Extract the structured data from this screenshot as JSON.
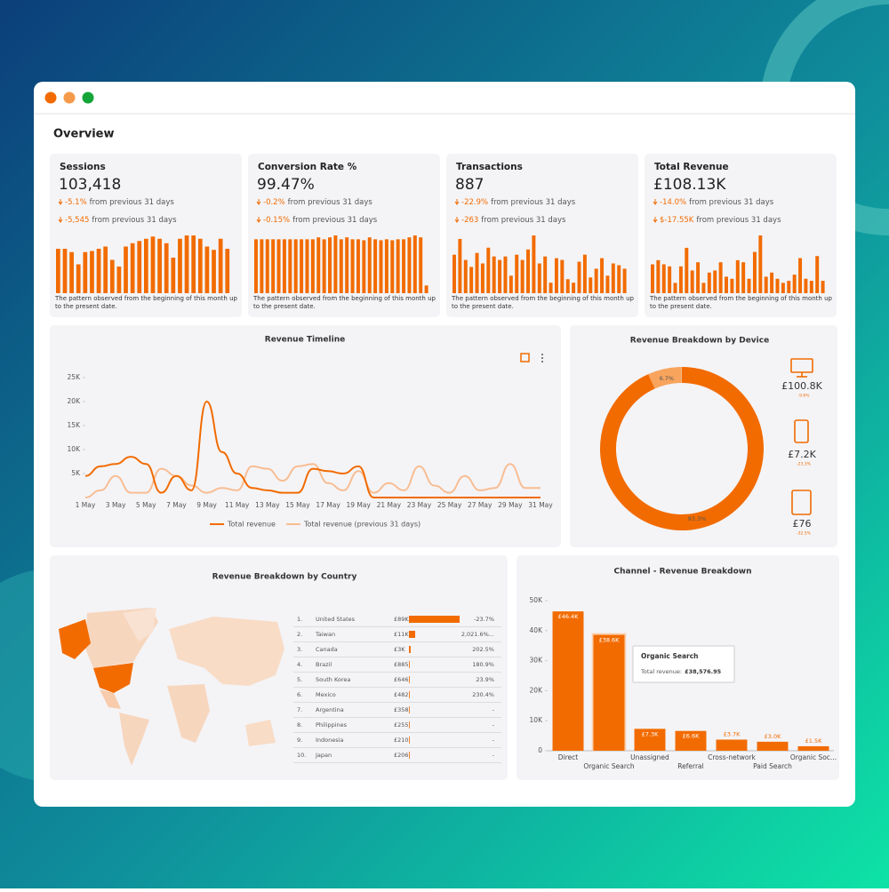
{
  "title": "Overview",
  "kpi_note": "The pattern observed from the beginning of this month up to the present date.",
  "kpis": [
    {
      "label": "Sessions",
      "value": "103,418",
      "changes": [
        {
          "delta": "-5.1%",
          "text": "from previous 31 days"
        },
        {
          "delta": "-5,545",
          "text": "from previous 31 days"
        }
      ],
      "bars": [
        40,
        40,
        37,
        26,
        37,
        38,
        40,
        42,
        30,
        24,
        42,
        45,
        47,
        49,
        51,
        49,
        45,
        32,
        49,
        52,
        52,
        49,
        42,
        39,
        49,
        40
      ]
    },
    {
      "label": "Conversion Rate %",
      "value": "99.47%",
      "changes": [
        {
          "delta": "-0.2%",
          "text": "from previous 31 days"
        },
        {
          "delta": "-0.15%",
          "text": "from previous 31 days"
        }
      ],
      "bars": [
        56,
        56,
        56,
        56,
        56,
        56,
        56,
        56,
        56,
        56,
        56,
        58,
        56,
        58,
        60,
        56,
        58,
        56,
        56,
        55,
        58,
        56,
        55,
        56,
        55,
        56,
        56,
        58,
        60,
        58,
        8
      ]
    },
    {
      "label": "Transactions",
      "value": "887",
      "changes": [
        {
          "delta": "-22.9%",
          "text": "from previous 31 days"
        },
        {
          "delta": "-263",
          "text": "from previous 31 days"
        }
      ],
      "bars": [
        44,
        62,
        38,
        30,
        46,
        34,
        52,
        42,
        38,
        42,
        20,
        44,
        38,
        50,
        66,
        34,
        42,
        12,
        40,
        38,
        16,
        12,
        36,
        44,
        18,
        28,
        40,
        20,
        34,
        32,
        28
      ]
    },
    {
      "label": "Total Revenue",
      "value": "£108.13K",
      "changes": [
        {
          "delta": "-14.0%",
          "text": "from previous 31 days"
        },
        {
          "delta": "$-17.55K",
          "text": "from previous 31 days"
        }
      ],
      "bars": [
        28,
        32,
        28,
        26,
        10,
        26,
        44,
        22,
        30,
        10,
        20,
        22,
        30,
        16,
        14,
        32,
        30,
        14,
        40,
        56,
        16,
        20,
        14,
        10,
        12,
        18,
        34,
        14,
        12,
        36,
        12
      ]
    }
  ],
  "chart_data": [
    {
      "type": "line",
      "title": "Revenue Timeline",
      "categories": [
        "1 May",
        null,
        "3 May",
        null,
        "5 May",
        null,
        "7 May",
        null,
        "9 May",
        null,
        "11 May",
        null,
        "13 May",
        null,
        "15 May",
        null,
        "17 May",
        null,
        "19 May",
        null,
        "21 May",
        null,
        "23 May",
        null,
        "25 May",
        null,
        "27 May",
        null,
        "29 May",
        null,
        "31 May"
      ],
      "series": [
        {
          "name": "Total revenue",
          "color": "#f26b00",
          "values": [
            4500,
            6500,
            7000,
            8500,
            7000,
            1000,
            4500,
            1500,
            20000,
            9500,
            5000,
            2000,
            1500,
            1000,
            1000,
            6000,
            5500,
            5000,
            6500,
            0,
            0,
            0,
            0,
            0,
            0,
            0,
            0,
            0,
            0,
            0,
            0
          ]
        },
        {
          "name": "Total revenue (previous 31 days)",
          "color": "#f8bd92",
          "values": [
            0,
            1500,
            4500,
            1000,
            1000,
            6000,
            4500,
            2500,
            1000,
            2000,
            1500,
            6500,
            6000,
            3500,
            6500,
            7000,
            3000,
            1500,
            5500,
            1000,
            3000,
            1500,
            6500,
            2500,
            1000,
            4500,
            1500,
            2000,
            7000,
            2000,
            2000
          ]
        }
      ],
      "ylim": [
        0,
        25000
      ],
      "yticks": [
        {
          "value": 5000,
          "label": "5K"
        },
        {
          "value": 10000,
          "label": "10K"
        },
        {
          "value": 15000,
          "label": "15K"
        },
        {
          "value": 20000,
          "label": "20K"
        },
        {
          "value": 25000,
          "label": "25K"
        }
      ],
      "legend": "bottom"
    },
    {
      "type": "pie",
      "title": "Revenue Breakdown by Device",
      "values": [
        100800,
        7200,
        76
      ],
      "value_labels": [
        "£100.8K",
        "£7.2K",
        "£76"
      ],
      "percent_labels": [
        "93.3%",
        "6.7%",
        null
      ],
      "changes": [
        "-9.6%",
        "-23.3%",
        "-32.5%"
      ],
      "colors": [
        "#f26b00",
        "#f8a45c",
        "#f9c89f"
      ],
      "donut": true
    },
    {
      "type": "bar",
      "title": "Channel - Revenue Breakdown",
      "categories": [
        "Direct",
        "Organic Search",
        "Unassigned",
        "Referral",
        "Cross-network",
        "Paid Search",
        "Organic Soc..."
      ],
      "values": [
        46400,
        38576.95,
        7300,
        6600,
        3700,
        3000,
        1500
      ],
      "value_labels": [
        "£46.4K",
        "£38.6K",
        "£7.3K",
        "£6.6K",
        "£3.7K",
        "£3.0K",
        "£1.5K"
      ],
      "color": "#f26b00",
      "ylim": [
        0,
        50000
      ],
      "yticks": [
        0,
        {
          "value": 10000,
          "label": "10K"
        },
        {
          "value": 20000,
          "label": "20K"
        },
        {
          "value": 30000,
          "label": "30K"
        },
        {
          "value": 40000,
          "label": "40K"
        },
        {
          "value": 50000,
          "label": "50K"
        }
      ],
      "tooltip": {
        "title": "Organic Search",
        "label": "Total revenue:",
        "value": "£38,576.95"
      }
    }
  ],
  "country_table": {
    "title": "Revenue Breakdown by Country",
    "rows": [
      {
        "rank": "1.",
        "country": "United States",
        "revenue": 89000,
        "revenue_label": "£89K",
        "change": "-23.7%"
      },
      {
        "rank": "2.",
        "country": "Taiwan",
        "revenue": 11000,
        "revenue_label": "£11K",
        "change": "2,021.6%..."
      },
      {
        "rank": "3.",
        "country": "Canada",
        "revenue": 3000,
        "revenue_label": "£3K",
        "change": "202.5%"
      },
      {
        "rank": "4.",
        "country": "Brazil",
        "revenue": 885,
        "revenue_label": "£885",
        "change": "180.9%"
      },
      {
        "rank": "5.",
        "country": "South Korea",
        "revenue": 646,
        "revenue_label": "£646",
        "change": "23.9%"
      },
      {
        "rank": "6.",
        "country": "Mexico",
        "revenue": 482,
        "revenue_label": "£482",
        "change": "230.4%"
      },
      {
        "rank": "7.",
        "country": "Argentina",
        "revenue": 358,
        "revenue_label": "£358",
        "change": "-"
      },
      {
        "rank": "8.",
        "country": "Philippines",
        "revenue": 255,
        "revenue_label": "£255",
        "change": "-"
      },
      {
        "rank": "9.",
        "country": "Indonesia",
        "revenue": 210,
        "revenue_label": "£210",
        "change": "-"
      },
      {
        "rank": "10.",
        "country": "Japan",
        "revenue": 206,
        "revenue_label": "£206",
        "change": "-"
      }
    ]
  }
}
